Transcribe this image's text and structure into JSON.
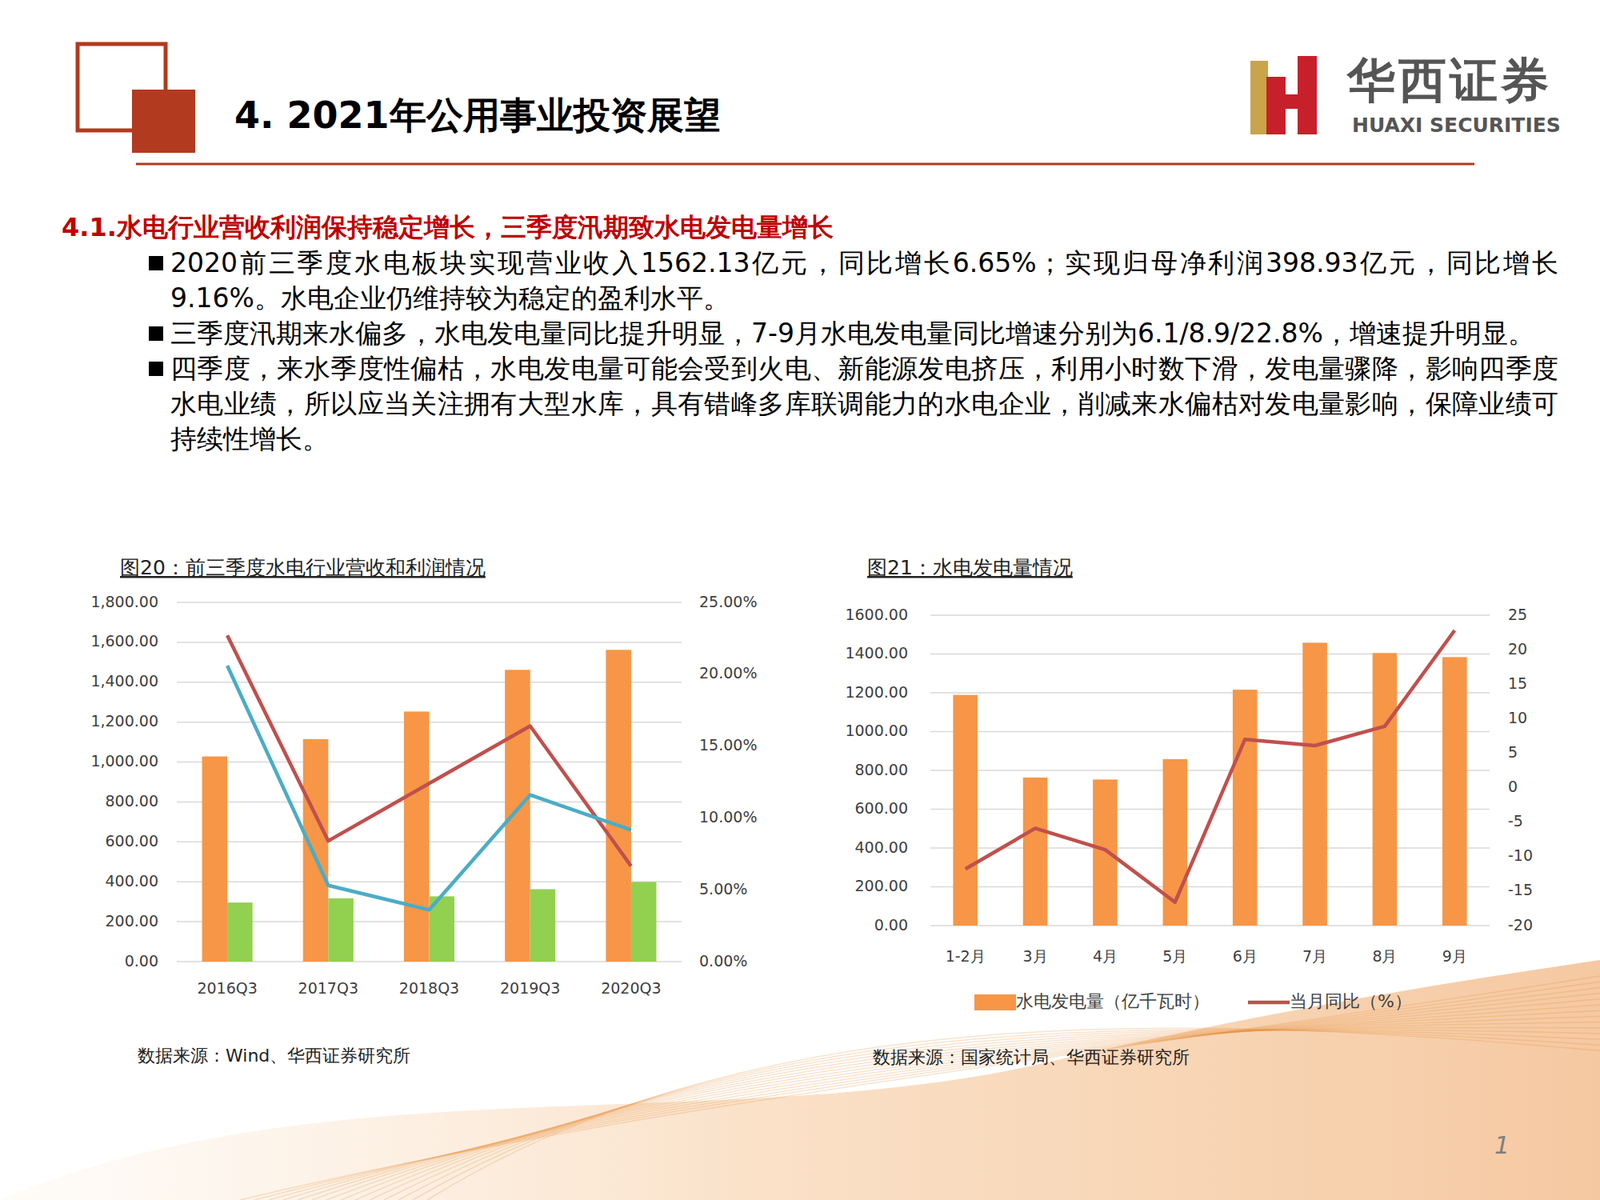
{
  "page": {
    "title": "4. 2021年公用事业投资展望",
    "logo_cn": "华西证券",
    "logo_en": "HUAXI SECURITIES",
    "section_title": "4.1.水电行业营收利润保持稳定增长，三季度汛期致水电发电量增长",
    "bullets": [
      "2020前三季度水电板块实现营业收入1562.13亿元，同比增长6.65%；实现归母净利润398.93亿元，同比增长9.16%。水电企业仍维持较为稳定的盈利水平。",
      "三季度汛期来水偏多，水电发电量同比提升明显，7-9月水电发电量同比增速分别为6.1/8.9/22.8%，增速提升明显。",
      "四季度，来水季度性偏枯，水电发电量可能会受到火电、新能源发电挤压，利用小时数下滑，发电量骤降，影响四季度水电业绩，所以应当关注拥有大型水库，具有错峰多库联调能力的水电企业，削减来水偏枯对发电量影响，保障业绩可持续性增长。"
    ],
    "page_number": "1"
  },
  "chart_data": [
    {
      "type": "bar",
      "title": "图20：前三季度水电行业营收和利润情况",
      "categories": [
        "2016Q3",
        "2017Q3",
        "2018Q3",
        "2019Q3",
        "2020Q3"
      ],
      "series": [
        {
          "type": "bar",
          "color": "#f79646",
          "values": [
            1028,
            1115,
            1253,
            1462,
            1562.13
          ]
        },
        {
          "type": "bar",
          "color": "#92d050",
          "values": [
            296,
            317,
            327,
            363,
            398.93
          ]
        },
        {
          "type": "line",
          "axis": "y2",
          "color": "#c0504d",
          "values": [
            22.7,
            8.4,
            12.4,
            16.4,
            6.65
          ]
        },
        {
          "type": "line",
          "axis": "y2",
          "color": "#4bacc6",
          "values": [
            20.6,
            5.3,
            3.6,
            11.6,
            9.16
          ]
        }
      ],
      "ylim": [
        0,
        1800
      ],
      "yticks": [
        {
          "value": 0,
          "label": "0.00"
        },
        {
          "value": 200,
          "label": "200.00"
        },
        {
          "value": 400,
          "label": "400.00"
        },
        {
          "value": 600,
          "label": "600.00"
        },
        {
          "value": 800,
          "label": "800.00"
        },
        {
          "value": 1000,
          "label": "1,000.00"
        },
        {
          "value": 1200,
          "label": "1,200.00"
        },
        {
          "value": 1400,
          "label": "1,400.00"
        },
        {
          "value": 1600,
          "label": "1,600.00"
        },
        {
          "value": 1800,
          "label": "1,800.00"
        }
      ],
      "y2lim": [
        0,
        25
      ],
      "y2ticks": [
        {
          "value": 0,
          "label": "0.00%"
        },
        {
          "value": 5,
          "label": "5.00%"
        },
        {
          "value": 10,
          "label": "10.00%"
        },
        {
          "value": 15,
          "label": "15.00%"
        },
        {
          "value": 20,
          "label": "20.00%"
        },
        {
          "value": 25,
          "label": "25.00%"
        }
      ],
      "grid": true,
      "source": "数据来源：Wind、华西证券研究所"
    },
    {
      "type": "bar",
      "title": "图21：水电发电量情况",
      "categories": [
        "1-2月",
        "3月",
        "4月",
        "5月",
        "6月",
        "7月",
        "8月",
        "9月"
      ],
      "series": [
        {
          "name": "水电发电量（亿千瓦时）",
          "type": "bar",
          "color": "#f79646",
          "values": [
            1189,
            763,
            753,
            858,
            1216,
            1458,
            1405,
            1384
          ]
        },
        {
          "name": "当月同比（%）",
          "type": "line",
          "axis": "y2",
          "color": "#c0504d",
          "values": [
            -11.8,
            -5.9,
            -9.0,
            -16.6,
            7.0,
            6.1,
            8.9,
            22.8
          ]
        }
      ],
      "ylim": [
        0,
        1600
      ],
      "yticks": [
        {
          "value": 0,
          "label": "0.00"
        },
        {
          "value": 200,
          "label": "200.00"
        },
        {
          "value": 400,
          "label": "400.00"
        },
        {
          "value": 600,
          "label": "600.00"
        },
        {
          "value": 800,
          "label": "800.00"
        },
        {
          "value": 1000,
          "label": "1000.00"
        },
        {
          "value": 1200,
          "label": "1200.00"
        },
        {
          "value": 1400,
          "label": "1400.00"
        },
        {
          "value": 1600,
          "label": "1600.00"
        }
      ],
      "y2lim": [
        -20,
        25
      ],
      "y2ticks": [
        -20,
        -15,
        -10,
        -5,
        0,
        5,
        10,
        15,
        20,
        25
      ],
      "grid": true,
      "legend": "bottom",
      "source": "数据来源：国家统计局、华西证券研究所"
    }
  ]
}
